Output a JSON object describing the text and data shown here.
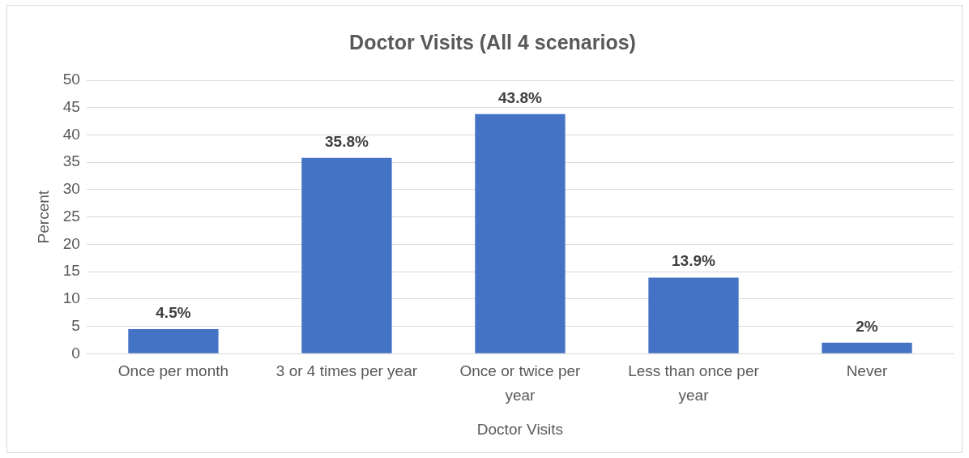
{
  "chart_data": {
    "type": "bar",
    "title": "Doctor Visits (All 4 scenarios)",
    "xlabel": "Doctor Visits",
    "ylabel": "Percent",
    "categories": [
      "Once per month",
      "3 or 4 times per year",
      "Once or twice per year",
      "Less than once per year",
      "Never"
    ],
    "values": [
      4.5,
      35.8,
      43.8,
      13.9,
      2
    ],
    "value_labels": [
      "4.5%",
      "35.8%",
      "43.8%",
      "13.9%",
      "2%"
    ],
    "color": "#4472c4",
    "ylim": [
      0,
      50
    ],
    "yticks": [
      0,
      5,
      10,
      15,
      20,
      25,
      30,
      35,
      40,
      45,
      50
    ],
    "grid": "y",
    "legend": false
  }
}
